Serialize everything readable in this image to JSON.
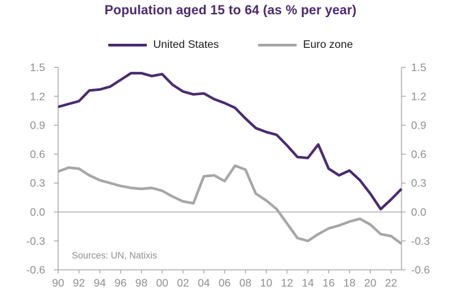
{
  "title": "Population aged 15 to 64 (as % per year)",
  "sources_note": "Sources: UN, Natixis",
  "colors": {
    "title": "#4B2A70",
    "us_line": "#4B2A70",
    "euro_line": "#A6A6A6",
    "axis": "#A9A9A9",
    "zero_line": "#ABABAB",
    "tick_label": "#8E8E8E",
    "legend_text": "#1A1A1A",
    "background": "#FFFFFF"
  },
  "chart_data": {
    "type": "line",
    "title": "Population aged 15 to 64 (as % per year)",
    "xlabel": "",
    "ylabel": "",
    "ylim": [
      -0.6,
      1.5
    ],
    "y_tick_step": 0.3,
    "grid": false,
    "zero_line": true,
    "legend_position": "top-center",
    "dual_y_axis": true,
    "years": [
      1990,
      1991,
      1992,
      1993,
      1994,
      1995,
      1996,
      1997,
      1998,
      1999,
      2000,
      2001,
      2002,
      2003,
      2004,
      2005,
      2006,
      2007,
      2008,
      2009,
      2010,
      2011,
      2012,
      2013,
      2014,
      2015,
      2016,
      2017,
      2018,
      2019,
      2020,
      2021,
      2022,
      2023
    ],
    "series": [
      {
        "name": "United States",
        "color": "#4B2A70",
        "values": [
          1.09,
          1.12,
          1.15,
          1.26,
          1.27,
          1.3,
          1.37,
          1.44,
          1.44,
          1.41,
          1.43,
          1.32,
          1.25,
          1.22,
          1.23,
          1.17,
          1.13,
          1.08,
          0.97,
          0.87,
          0.83,
          0.8,
          0.69,
          0.57,
          0.56,
          0.7,
          0.45,
          0.38,
          0.43,
          0.33,
          0.19,
          0.03,
          0.13,
          0.24
        ]
      },
      {
        "name": "Euro zone",
        "color": "#A6A6A6",
        "values": [
          0.42,
          0.46,
          0.45,
          0.38,
          0.33,
          0.3,
          0.27,
          0.25,
          0.24,
          0.25,
          0.22,
          0.16,
          0.11,
          0.09,
          0.37,
          0.38,
          0.32,
          0.48,
          0.44,
          0.19,
          0.12,
          0.03,
          -0.12,
          -0.27,
          -0.3,
          -0.23,
          -0.17,
          -0.14,
          -0.1,
          -0.07,
          -0.13,
          -0.23,
          -0.25,
          -0.33
        ]
      }
    ],
    "y_ticks": [
      {
        "v": 1.5,
        "label": "1.5"
      },
      {
        "v": 1.2,
        "label": "1.2"
      },
      {
        "v": 0.9,
        "label": "0.9"
      },
      {
        "v": 0.6,
        "label": "0.6"
      },
      {
        "v": 0.3,
        "label": "0.3"
      },
      {
        "v": 0.0,
        "label": "0.0"
      },
      {
        "v": -0.3,
        "label": "-0.3"
      },
      {
        "v": -0.6,
        "label": "-0.6"
      }
    ],
    "x_ticks": [
      {
        "year": 1990,
        "label": "90"
      },
      {
        "year": 1992,
        "label": "92"
      },
      {
        "year": 1994,
        "label": "94"
      },
      {
        "year": 1996,
        "label": "96"
      },
      {
        "year": 1998,
        "label": "98"
      },
      {
        "year": 2000,
        "label": "00"
      },
      {
        "year": 2002,
        "label": "02"
      },
      {
        "year": 2004,
        "label": "04"
      },
      {
        "year": 2006,
        "label": "06"
      },
      {
        "year": 2008,
        "label": "08"
      },
      {
        "year": 2010,
        "label": "10"
      },
      {
        "year": 2012,
        "label": "12"
      },
      {
        "year": 2014,
        "label": "14"
      },
      {
        "year": 2016,
        "label": "16"
      },
      {
        "year": 2018,
        "label": "18"
      },
      {
        "year": 2020,
        "label": "20"
      },
      {
        "year": 2022,
        "label": "22"
      }
    ]
  }
}
